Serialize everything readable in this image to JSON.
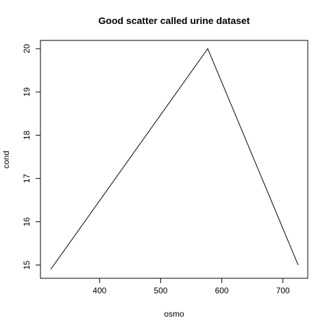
{
  "chart_data": {
    "type": "line",
    "title": "Good scatter called urine dataset",
    "xlabel": "osmo",
    "ylabel": "cond",
    "xlim": [
      320,
      725
    ],
    "ylim": [
      14.9,
      20.0
    ],
    "x_ticks": [
      400,
      500,
      600,
      700
    ],
    "y_ticks": [
      15,
      16,
      17,
      18,
      19,
      20
    ],
    "grid": false,
    "series": [
      {
        "x": [
          320,
          577,
          725
        ],
        "y": [
          14.9,
          20.0,
          15.0
        ]
      }
    ]
  }
}
